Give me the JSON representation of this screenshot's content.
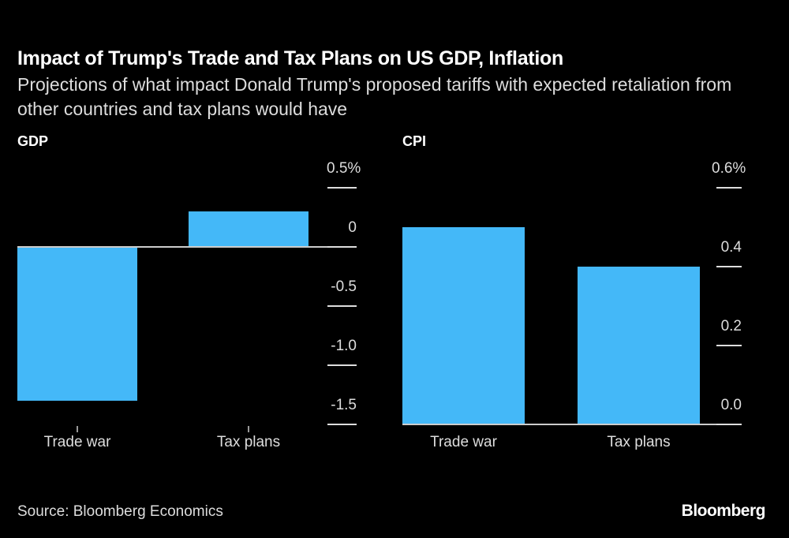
{
  "title": "Impact of Trump's Trade and Tax Plans on US GDP, Inflation",
  "subtitle": "Projections of what impact Donald Trump's proposed tariffs with expected retaliation from other countries and tax plans would have",
  "source": "Source: Bloomberg Economics",
  "logo": "Bloomberg",
  "colors": {
    "bar": "#44b8f8",
    "background": "#000000",
    "text": "#ffffff"
  },
  "chart_data": [
    {
      "type": "bar",
      "title": "GDP",
      "categories": [
        "Trade war",
        "Tax plans"
      ],
      "values": [
        -1.3,
        0.3
      ],
      "unit": "%",
      "ylim": [
        -1.5,
        0.5
      ],
      "yticks": [
        0.5,
        0,
        -0.5,
        -1.0,
        -1.5
      ],
      "ytick_labels": [
        "0.5%",
        "0",
        "-0.5",
        "-1.0",
        "-1.5"
      ],
      "axis_position": "right",
      "grid": false
    },
    {
      "type": "bar",
      "title": "CPI",
      "categories": [
        "Trade war",
        "Tax plans"
      ],
      "values": [
        0.5,
        0.4
      ],
      "unit": "%",
      "ylim": [
        0,
        0.6
      ],
      "yticks": [
        0.6,
        0.4,
        0.2,
        0.0
      ],
      "ytick_labels": [
        "0.6%",
        "0.4",
        "0.2",
        "0.0"
      ],
      "axis_position": "right",
      "grid": false
    }
  ]
}
